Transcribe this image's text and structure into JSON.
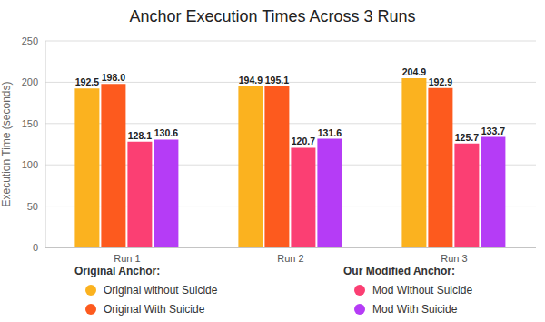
{
  "chart_data": {
    "type": "bar",
    "title": "Anchor Execution Times Across 3 Runs",
    "y_label": "Execution Time (seconds)",
    "categories": [
      "Run 1",
      "Run 2",
      "Run 3"
    ],
    "ylim": [
      0,
      250
    ],
    "yticks": [
      0,
      50,
      100,
      150,
      200,
      250
    ],
    "grid": true,
    "data_labels": true,
    "legend": "bottom",
    "legend_titles": [
      "Original Anchor:",
      "Our Modified Anchor:"
    ],
    "series": [
      {
        "name": "Original without Suicide",
        "color": "#fbb21f",
        "values": [
          192.5,
          194.9,
          204.9
        ],
        "value_labels": [
          "192.5",
          "194.9",
          "204.9"
        ]
      },
      {
        "name": "Original With Suicide",
        "color": "#fd5a1e",
        "values": [
          198.0,
          195.1,
          192.9
        ],
        "value_labels": [
          "198.0",
          "195.1",
          "192.9"
        ]
      },
      {
        "name": "Mod Without Suicide",
        "color": "#fb3f73",
        "values": [
          128.1,
          120.7,
          125.7
        ],
        "value_labels": [
          "128.1",
          "120.7",
          "125.7"
        ]
      },
      {
        "name": "Mod With Suicide",
        "color": "#b53cf6",
        "values": [
          130.6,
          131.6,
          133.7
        ],
        "value_labels": [
          "130.6",
          "131.6",
          "133.7"
        ]
      }
    ]
  }
}
